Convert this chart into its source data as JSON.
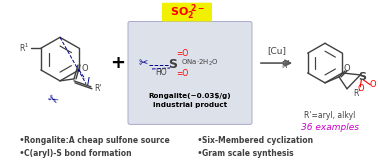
{
  "background_color": "#ffffff",
  "panel_bg_color": "#dde1ea",
  "so2_bg": "#f0f000",
  "so2_text_color": "#ff0000",
  "arrow_color": "#555555",
  "cu_label": "[Cu]",
  "rongalite_label": "Rongalite(~0.03$/g)\nindustrial product",
  "rongalite_color": "#000000",
  "rprimes_label": "R'=aryl, alkyl",
  "examples_label": "36 examples",
  "examples_color": "#cc00cc",
  "bullet_points_left": [
    "Rongalite:A cheap sulfone source",
    "C(aryl)-S bond formation"
  ],
  "bullet_points_right": [
    "Six-Membered cyclization",
    "Gram scale synthesis"
  ],
  "bullet_color": "#000000",
  "bullet_fontsize": 5.5,
  "plus_color": "#000000",
  "bond_color": "#404040",
  "iodine_color": "#00008b",
  "scissors_color": "#00008b",
  "red_color": "#ff0000",
  "gray_color": "#888888"
}
